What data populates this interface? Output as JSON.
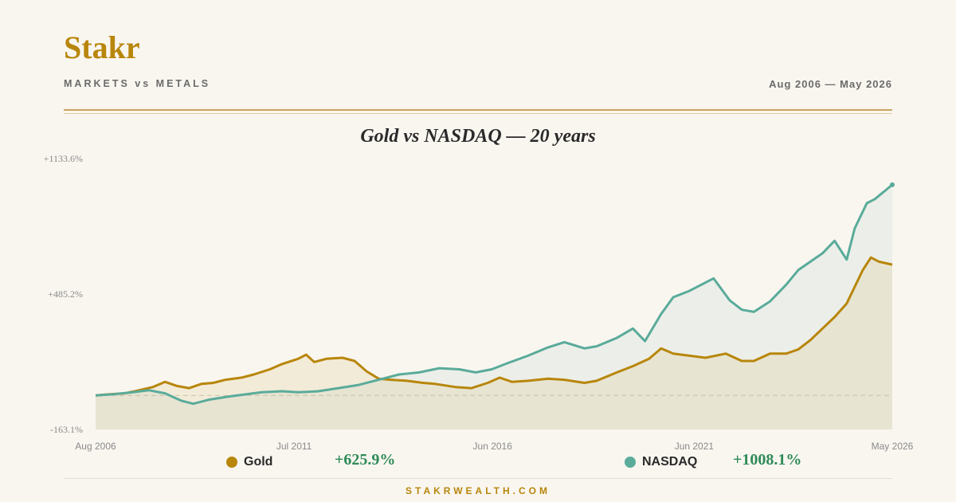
{
  "header": {
    "brand": "Stakr",
    "subtitle": "MARKETS vs METALS",
    "date_range": "Aug 2006 — May 2026"
  },
  "footer": {
    "site": "STAKRWEALTH.COM"
  },
  "colors": {
    "gold": "#b8860b",
    "nasdaq": "#5aab9a",
    "accent": "#b8860b",
    "positive": "#2e8b57"
  },
  "chart_data": {
    "type": "line",
    "title": "Gold vs NASDAQ — 20 years",
    "xlabel": "",
    "ylabel": "",
    "ylim": [
      -163.1,
      1133.6
    ],
    "y_ticks": [
      "+1133.6%",
      "+485.2%",
      "-163.1%"
    ],
    "y_tick_values": [
      1133.6,
      485.2,
      -163.1
    ],
    "x_ticks": [
      "Aug 2006",
      "Jul 2011",
      "Jun 2016",
      "Jun 2021",
      "May 2026"
    ],
    "x_tick_values": [
      2006.58,
      2011.5,
      2016.42,
      2021.42,
      2026.33
    ],
    "x_range": [
      2006.58,
      2026.33
    ],
    "baseline": 0,
    "series": [
      {
        "name": "Gold",
        "final_return": "+625.9%",
        "points": [
          [
            2006.58,
            0
          ],
          [
            2006.9,
            5
          ],
          [
            2007.3,
            10
          ],
          [
            2007.6,
            22
          ],
          [
            2008.0,
            40
          ],
          [
            2008.3,
            65
          ],
          [
            2008.6,
            45
          ],
          [
            2008.9,
            35
          ],
          [
            2009.2,
            55
          ],
          [
            2009.5,
            60
          ],
          [
            2009.8,
            75
          ],
          [
            2010.2,
            85
          ],
          [
            2010.5,
            100
          ],
          [
            2010.9,
            125
          ],
          [
            2011.2,
            150
          ],
          [
            2011.6,
            175
          ],
          [
            2011.8,
            195
          ],
          [
            2012.0,
            160
          ],
          [
            2012.3,
            175
          ],
          [
            2012.7,
            180
          ],
          [
            2013.0,
            165
          ],
          [
            2013.3,
            115
          ],
          [
            2013.6,
            80
          ],
          [
            2013.9,
            75
          ],
          [
            2014.3,
            70
          ],
          [
            2014.7,
            60
          ],
          [
            2015.0,
            55
          ],
          [
            2015.5,
            40
          ],
          [
            2015.9,
            35
          ],
          [
            2016.3,
            60
          ],
          [
            2016.6,
            85
          ],
          [
            2016.9,
            65
          ],
          [
            2017.3,
            70
          ],
          [
            2017.8,
            80
          ],
          [
            2018.2,
            75
          ],
          [
            2018.7,
            60
          ],
          [
            2019.0,
            70
          ],
          [
            2019.5,
            110
          ],
          [
            2019.9,
            140
          ],
          [
            2020.3,
            175
          ],
          [
            2020.6,
            225
          ],
          [
            2020.9,
            200
          ],
          [
            2021.3,
            190
          ],
          [
            2021.7,
            180
          ],
          [
            2022.2,
            200
          ],
          [
            2022.6,
            165
          ],
          [
            2022.9,
            165
          ],
          [
            2023.3,
            200
          ],
          [
            2023.7,
            200
          ],
          [
            2024.0,
            220
          ],
          [
            2024.3,
            265
          ],
          [
            2024.6,
            320
          ],
          [
            2024.9,
            375
          ],
          [
            2025.2,
            440
          ],
          [
            2025.4,
            520
          ],
          [
            2025.6,
            600
          ],
          [
            2025.8,
            660
          ],
          [
            2026.0,
            640
          ],
          [
            2026.33,
            625.9
          ]
        ]
      },
      {
        "name": "NASDAQ",
        "final_return": "+1008.1%",
        "points": [
          [
            2006.58,
            0
          ],
          [
            2007.0,
            5
          ],
          [
            2007.5,
            15
          ],
          [
            2007.9,
            25
          ],
          [
            2008.3,
            10
          ],
          [
            2008.7,
            -25
          ],
          [
            2009.0,
            -40
          ],
          [
            2009.4,
            -20
          ],
          [
            2009.9,
            -5
          ],
          [
            2010.3,
            5
          ],
          [
            2010.7,
            15
          ],
          [
            2011.2,
            20
          ],
          [
            2011.6,
            15
          ],
          [
            2012.1,
            20
          ],
          [
            2012.6,
            35
          ],
          [
            2013.1,
            50
          ],
          [
            2013.6,
            75
          ],
          [
            2014.1,
            100
          ],
          [
            2014.6,
            110
          ],
          [
            2015.1,
            130
          ],
          [
            2015.6,
            125
          ],
          [
            2016.0,
            110
          ],
          [
            2016.4,
            125
          ],
          [
            2016.8,
            155
          ],
          [
            2017.3,
            190
          ],
          [
            2017.8,
            230
          ],
          [
            2018.2,
            255
          ],
          [
            2018.7,
            225
          ],
          [
            2019.0,
            235
          ],
          [
            2019.5,
            275
          ],
          [
            2019.9,
            320
          ],
          [
            2020.2,
            260
          ],
          [
            2020.6,
            390
          ],
          [
            2020.9,
            470
          ],
          [
            2021.3,
            500
          ],
          [
            2021.9,
            560
          ],
          [
            2022.3,
            455
          ],
          [
            2022.6,
            410
          ],
          [
            2022.9,
            400
          ],
          [
            2023.3,
            450
          ],
          [
            2023.7,
            530
          ],
          [
            2024.0,
            600
          ],
          [
            2024.3,
            640
          ],
          [
            2024.6,
            680
          ],
          [
            2024.9,
            740
          ],
          [
            2025.2,
            650
          ],
          [
            2025.4,
            800
          ],
          [
            2025.7,
            920
          ],
          [
            2025.9,
            940
          ],
          [
            2026.33,
            1008.1
          ]
        ]
      }
    ],
    "legend_position": "bottom",
    "grid": false
  }
}
